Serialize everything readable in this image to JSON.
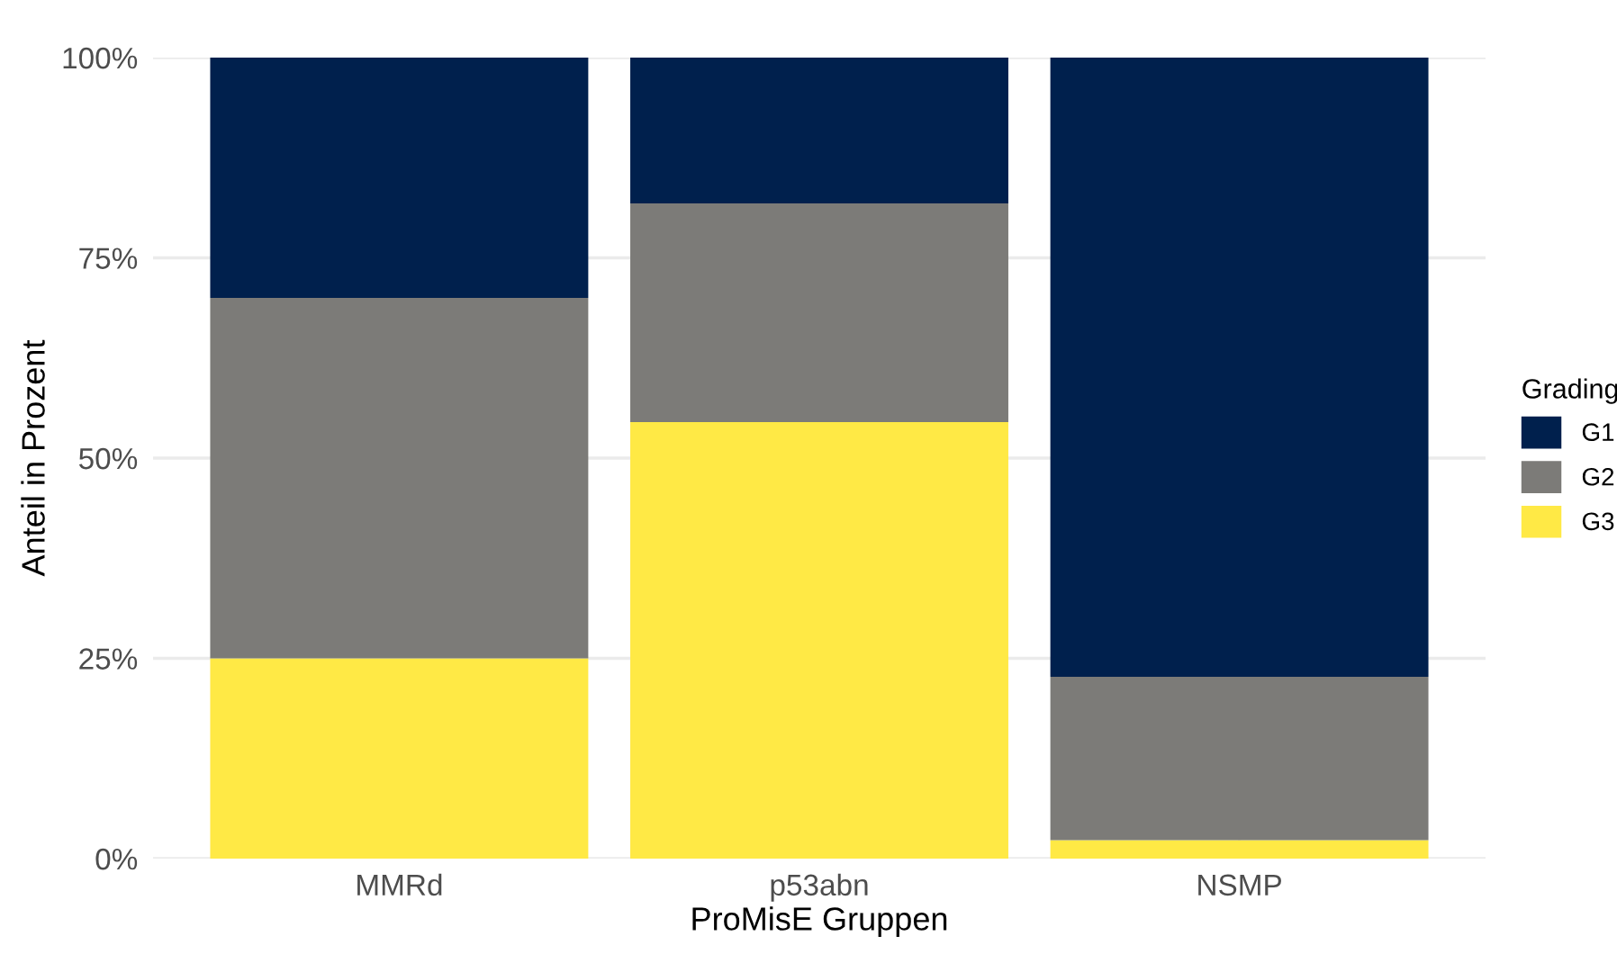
{
  "chart_data": {
    "type": "bar",
    "stacked": true,
    "xlabel": "ProMisE Gruppen",
    "ylabel": "Anteil in Prozent",
    "legend_title": "Grading",
    "legend": "right",
    "categories": [
      "MMRd",
      "p53abn",
      "NSMP"
    ],
    "series": [
      {
        "name": "G3",
        "color": "#ffe945",
        "values": [
          25,
          54.5,
          2.3
        ]
      },
      {
        "name": "G2",
        "color": "#7c7b78",
        "values": [
          45,
          27.3,
          20.4
        ]
      },
      {
        "name": "G1",
        "color": "#00204d",
        "values": [
          30,
          18.2,
          77.3
        ]
      }
    ],
    "ylim": [
      0,
      100
    ],
    "yticks": [
      {
        "value": 0,
        "label": "0%"
      },
      {
        "value": 25,
        "label": "25%"
      },
      {
        "value": 50,
        "label": "50%"
      },
      {
        "value": 75,
        "label": "75%"
      },
      {
        "value": 100,
        "label": "100%"
      }
    ],
    "grid": true
  }
}
